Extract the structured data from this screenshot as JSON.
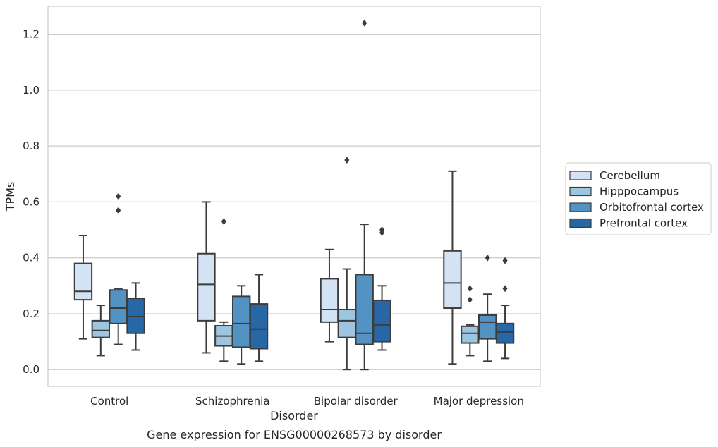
{
  "chart_data": {
    "type": "box",
    "title": "",
    "caption": "Gene expression for ENSG00000268573 by disorder",
    "xlabel": "Disorder",
    "ylabel": "TPMs",
    "ylim": [
      -0.06,
      1.3
    ],
    "yticks": [
      0.0,
      0.2,
      0.4,
      0.6,
      0.8,
      1.0,
      1.2
    ],
    "ytick_labels": [
      "0.0",
      "0.2",
      "0.4",
      "0.6",
      "0.8",
      "1.0",
      "1.2"
    ],
    "grid": true,
    "legend_position": "right",
    "categories": [
      "Control",
      "Schizophrenia",
      "Bipolar disorder",
      "Major depression"
    ],
    "series": [
      {
        "name": "Cerebellum",
        "color": "#d4e3f3",
        "boxes": [
          {
            "whisker_low": 0.11,
            "q1": 0.25,
            "median": 0.28,
            "q3": 0.38,
            "whisker_high": 0.48,
            "outliers": []
          },
          {
            "whisker_low": 0.06,
            "q1": 0.175,
            "median": 0.305,
            "q3": 0.415,
            "whisker_high": 0.6,
            "outliers": []
          },
          {
            "whisker_low": 0.1,
            "q1": 0.17,
            "median": 0.215,
            "q3": 0.325,
            "whisker_high": 0.43,
            "outliers": []
          },
          {
            "whisker_low": 0.02,
            "q1": 0.22,
            "median": 0.31,
            "q3": 0.425,
            "whisker_high": 0.71,
            "outliers": []
          }
        ]
      },
      {
        "name": "Hipppocampus",
        "color": "#9dc5df",
        "boxes": [
          {
            "whisker_low": 0.05,
            "q1": 0.115,
            "median": 0.14,
            "q3": 0.175,
            "whisker_high": 0.23,
            "outliers": []
          },
          {
            "whisker_low": 0.03,
            "q1": 0.085,
            "median": 0.12,
            "q3": 0.157,
            "whisker_high": 0.17,
            "outliers": [
              0.53
            ]
          },
          {
            "whisker_low": 0.0,
            "q1": 0.115,
            "median": 0.175,
            "q3": 0.215,
            "whisker_high": 0.36,
            "outliers": [
              0.75
            ]
          },
          {
            "whisker_low": 0.05,
            "q1": 0.095,
            "median": 0.13,
            "q3": 0.155,
            "whisker_high": 0.16,
            "outliers": [
              0.25,
              0.29
            ]
          }
        ]
      },
      {
        "name": "Orbitofrontal cortex",
        "color": "#5393c4",
        "boxes": [
          {
            "whisker_low": 0.09,
            "q1": 0.165,
            "median": 0.22,
            "q3": 0.285,
            "whisker_high": 0.29,
            "outliers": [
              0.57,
              0.62
            ]
          },
          {
            "whisker_low": 0.02,
            "q1": 0.08,
            "median": 0.165,
            "q3": 0.262,
            "whisker_high": 0.3,
            "outliers": []
          },
          {
            "whisker_low": 0.0,
            "q1": 0.09,
            "median": 0.13,
            "q3": 0.34,
            "whisker_high": 0.52,
            "outliers": [
              1.24
            ]
          },
          {
            "whisker_low": 0.03,
            "q1": 0.11,
            "median": 0.17,
            "q3": 0.195,
            "whisker_high": 0.27,
            "outliers": [
              0.4
            ]
          }
        ]
      },
      {
        "name": "Prefrontal cortex",
        "color": "#2767a6",
        "boxes": [
          {
            "whisker_low": 0.07,
            "q1": 0.13,
            "median": 0.19,
            "q3": 0.255,
            "whisker_high": 0.31,
            "outliers": []
          },
          {
            "whisker_low": 0.03,
            "q1": 0.075,
            "median": 0.145,
            "q3": 0.235,
            "whisker_high": 0.34,
            "outliers": []
          },
          {
            "whisker_low": 0.07,
            "q1": 0.1,
            "median": 0.16,
            "q3": 0.248,
            "whisker_high": 0.3,
            "outliers": [
              0.49,
              0.5
            ]
          },
          {
            "whisker_low": 0.04,
            "q1": 0.095,
            "median": 0.135,
            "q3": 0.165,
            "whisker_high": 0.23,
            "outliers": [
              0.29,
              0.39
            ]
          }
        ]
      }
    ]
  }
}
